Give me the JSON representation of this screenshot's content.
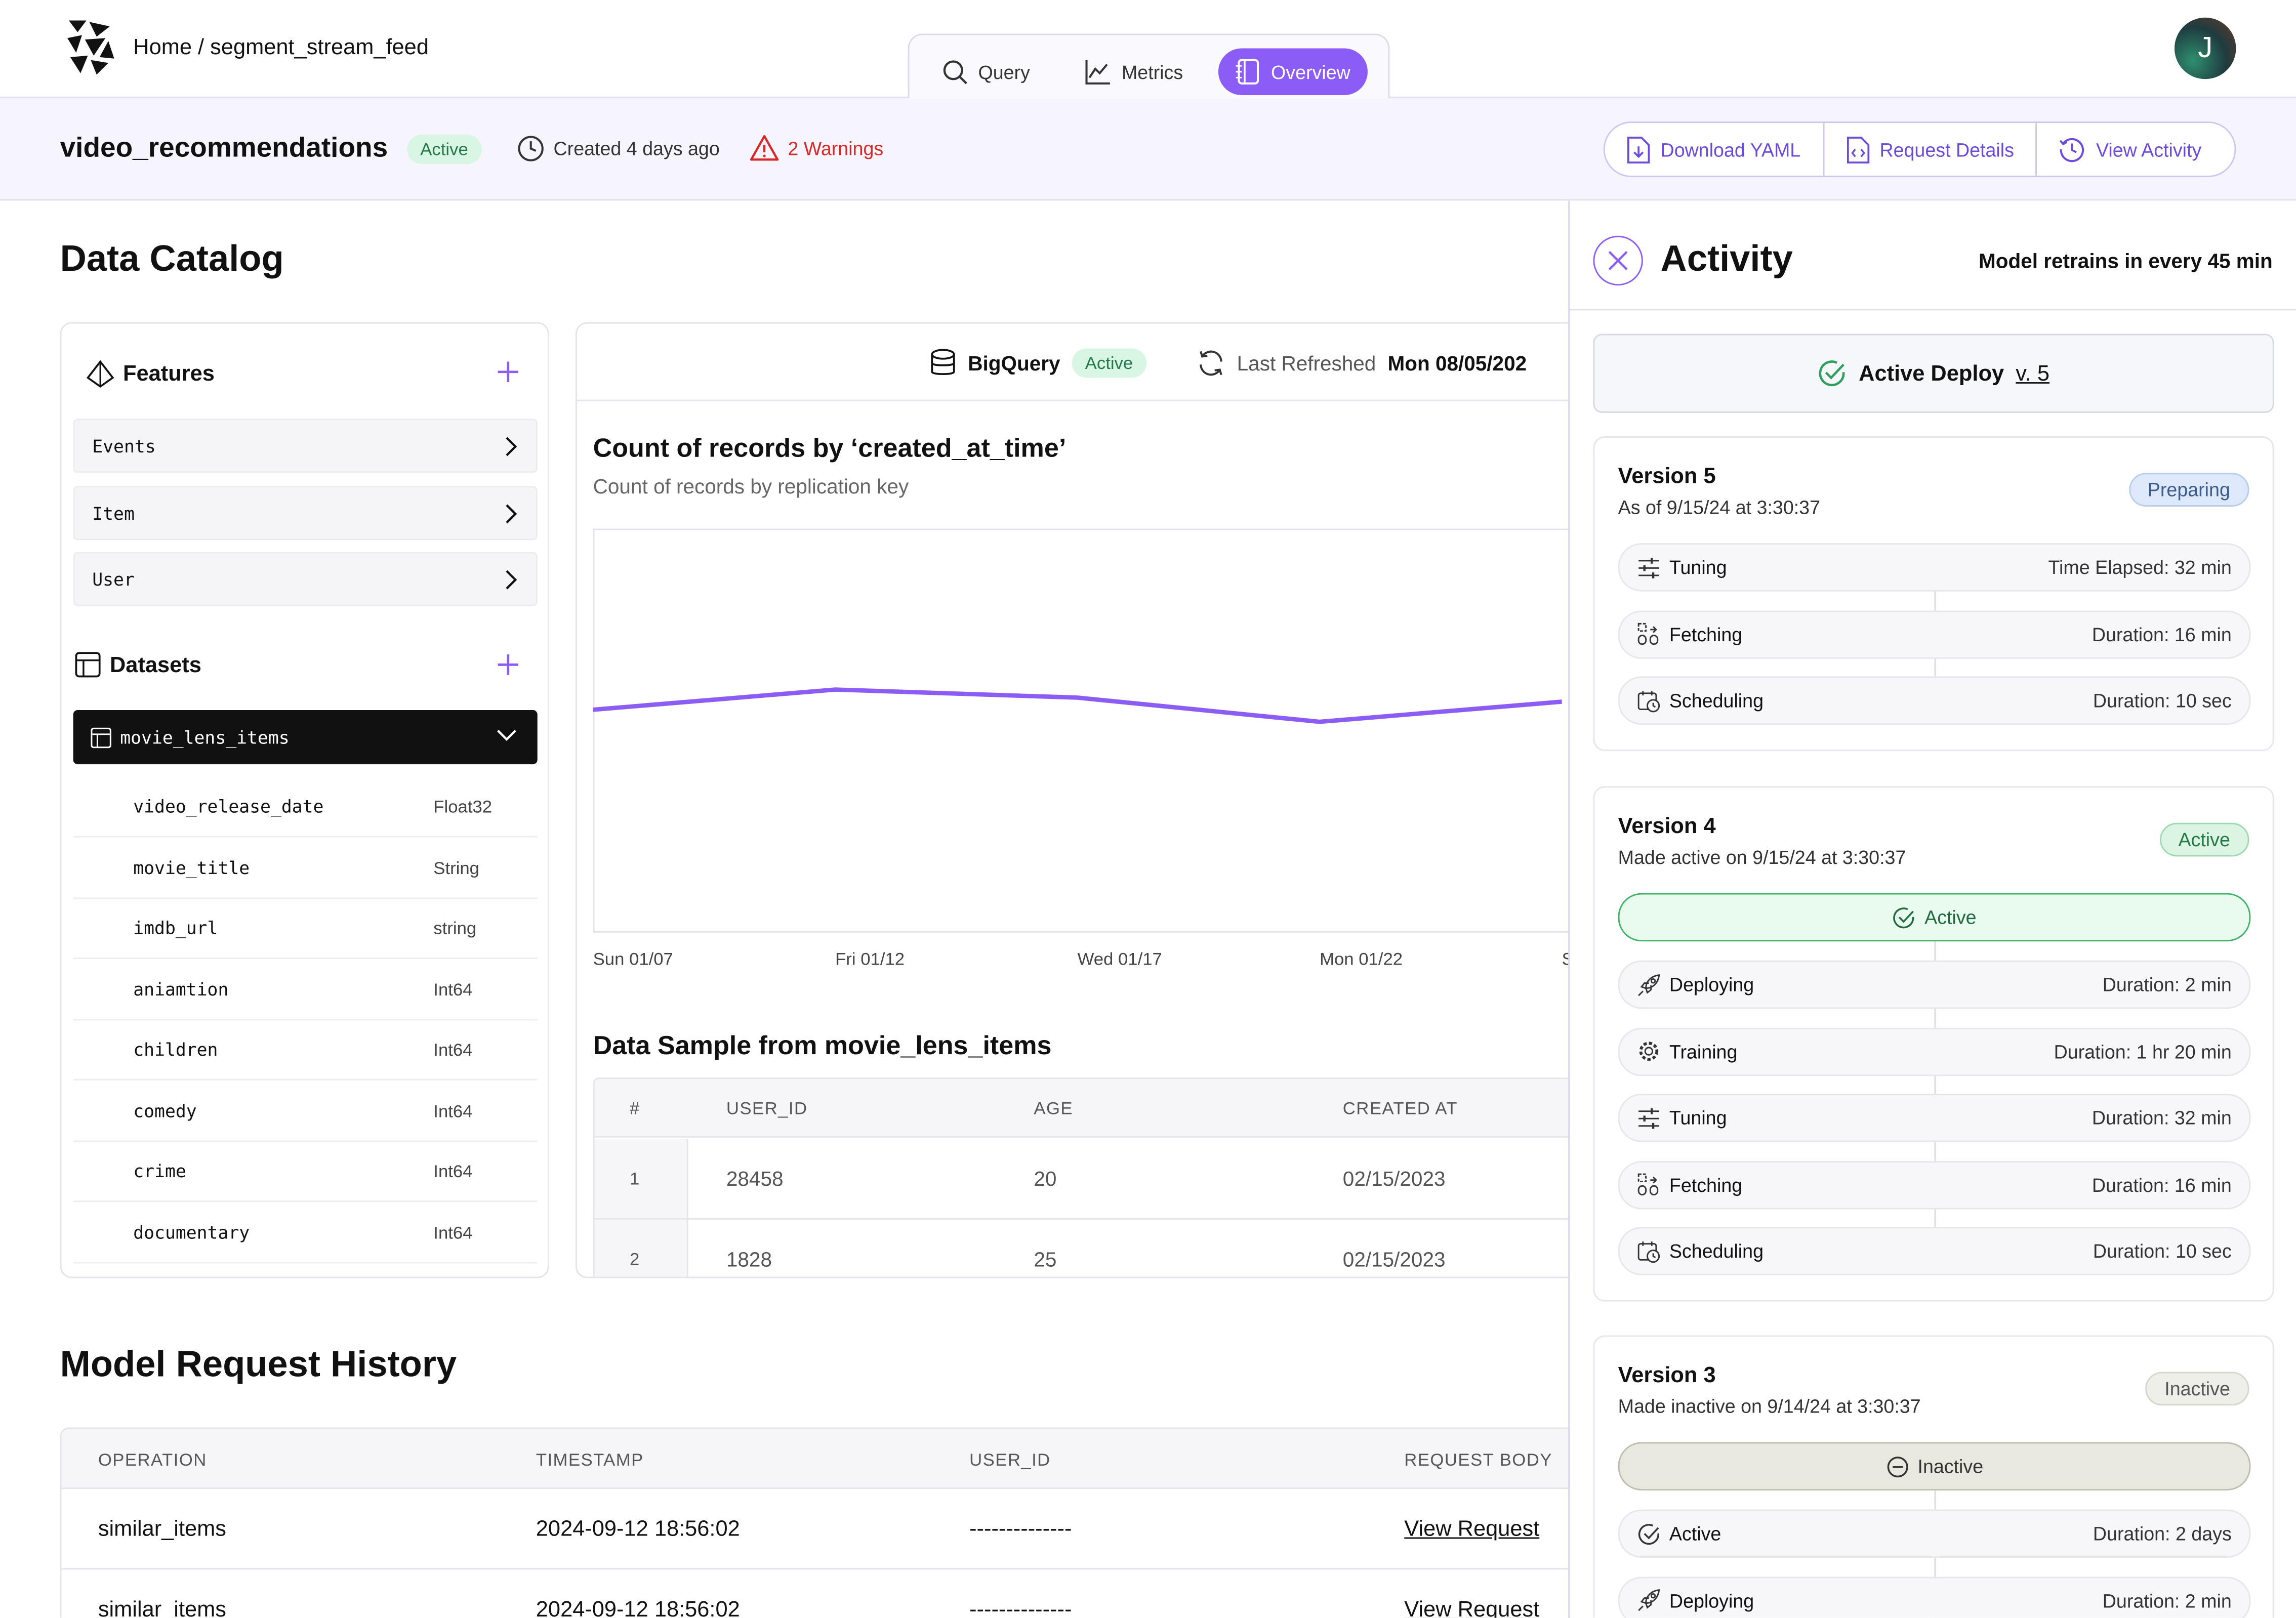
{
  "header": {
    "breadcrumb": "Home / segment_stream_feed",
    "tabs": [
      {
        "label": "Query",
        "icon": "search-icon"
      },
      {
        "label": "Metrics",
        "icon": "line-chart-icon"
      },
      {
        "label": "Overview",
        "icon": "notebook-icon",
        "active": true
      }
    ],
    "avatar_initial": "J"
  },
  "model": {
    "name": "video_recommendations",
    "status": "Active",
    "created": "Created 4 days ago",
    "warnings": "2 Warnings",
    "actions": [
      "Download YAML",
      "Request Details",
      "View Activity"
    ]
  },
  "catalog": {
    "title": "Data Catalog",
    "features_title": "Features",
    "features": [
      "Events",
      "Item",
      "User"
    ],
    "datasets_title": "Datasets",
    "dataset": "movie_lens_items",
    "columns": [
      {
        "name": "video_release_date",
        "type": "Float32"
      },
      {
        "name": "movie_title",
        "type": "String"
      },
      {
        "name": "imdb_url",
        "type": "string"
      },
      {
        "name": "aniamtion",
        "type": "Int64"
      },
      {
        "name": "children",
        "type": "Int64"
      },
      {
        "name": "comedy",
        "type": "Int64"
      },
      {
        "name": "crime",
        "type": "Int64"
      },
      {
        "name": "documentary",
        "type": "Int64"
      }
    ]
  },
  "source": {
    "name": "BigQuery",
    "status": "Active",
    "refreshed_label": "Last Refreshed",
    "refreshed_value": "Mon 08/05/202"
  },
  "chart_data": {
    "type": "line",
    "title": "Count of records by ‘created_at_time’",
    "subtitle": "Count of records by replication key",
    "x": [
      "Sun 01/07",
      "Fri 01/12",
      "Wed 01/17",
      "Mon 01/22",
      "Sat"
    ],
    "series": [
      {
        "values": [
          55,
          60,
          58,
          52,
          57
        ]
      }
    ],
    "ylim": [
      0,
      100
    ],
    "grid": false,
    "color": "#8b5cf6"
  },
  "sample": {
    "title": "Data Sample from movie_lens_items",
    "headers": [
      "#",
      "USER_ID",
      "AGE",
      "CREATED AT"
    ],
    "rows": [
      [
        "1",
        "28458",
        "20",
        "02/15/2023"
      ],
      [
        "2",
        "1828",
        "25",
        "02/15/2023"
      ]
    ]
  },
  "history": {
    "title": "Model Request History",
    "headers": [
      "OPERATION",
      "TIMESTAMP",
      "USER_ID",
      "REQUEST BODY"
    ],
    "rows": [
      [
        "similar_items",
        "2024-09-12 18:56:02",
        "--------------",
        "View Request"
      ],
      [
        "similar_items",
        "2024-09-12 18:56:02",
        "--------------",
        "View Request"
      ]
    ]
  },
  "activity": {
    "title": "Activity",
    "retrain": "Model retrains in every 45 min",
    "deploy_label": "Active Deploy",
    "deploy_version": "v. 5",
    "versions": [
      {
        "title": "Version 5",
        "sub": "As of 9/15/24  at 3:30:37",
        "tag": "Preparing",
        "steps": [
          {
            "label": "Tuning",
            "icon": "sliders-icon",
            "value": "Time Elapsed: 32 min"
          },
          {
            "label": "Fetching",
            "icon": "fetch-icon",
            "value": "Duration: 16 min"
          },
          {
            "label": "Scheduling",
            "icon": "calendar-clock-icon",
            "value": "Duration: 10 sec"
          }
        ]
      },
      {
        "title": "Version 4",
        "sub": "Made active on 9/15/24  at 3:30:37",
        "tag": "Active",
        "state": "Active",
        "steps": [
          {
            "label": "Deploying",
            "icon": "rocket-icon",
            "value": "Duration: 2 min"
          },
          {
            "label": "Training",
            "icon": "gear-icon",
            "value": "Duration: 1 hr 20 min"
          },
          {
            "label": "Tuning",
            "icon": "sliders-icon",
            "value": "Duration: 32 min"
          },
          {
            "label": "Fetching",
            "icon": "fetch-icon",
            "value": "Duration: 16 min"
          },
          {
            "label": "Scheduling",
            "icon": "calendar-clock-icon",
            "value": "Duration: 10 sec"
          }
        ]
      },
      {
        "title": "Version 3",
        "sub": "Made inactive on 9/14/24  at 3:30:37",
        "tag": "Inactive",
        "state": "Inactive",
        "steps": [
          {
            "label": "Active",
            "icon": "check-circle-icon",
            "value": "Duration: 2 days"
          },
          {
            "label": "Deploying",
            "icon": "rocket-icon",
            "value": "Duration: 2 min"
          }
        ]
      }
    ]
  }
}
